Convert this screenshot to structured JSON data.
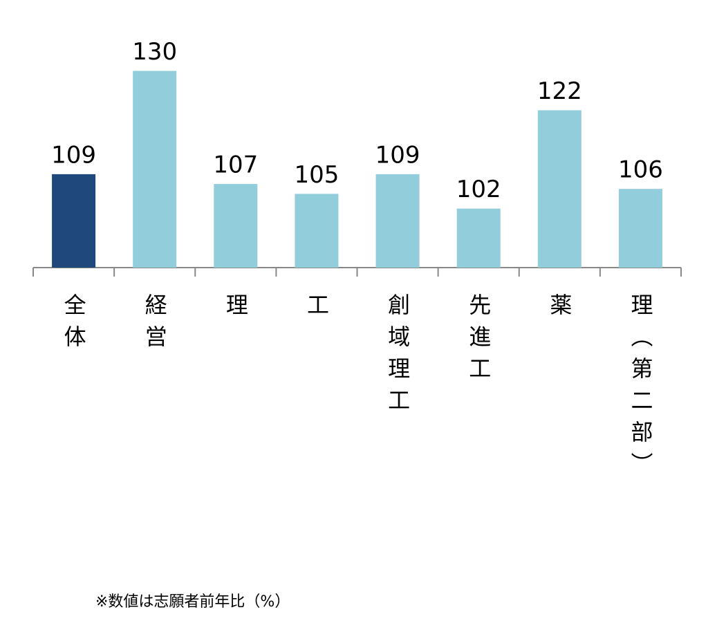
{
  "chart_data": {
    "type": "bar",
    "categories": [
      "全体",
      "経営",
      "理",
      "工",
      "創域理工",
      "先進工",
      "薬",
      "理（第二部）"
    ],
    "values": [
      109,
      130,
      107,
      105,
      109,
      102,
      122,
      106
    ],
    "colors": [
      "#1f497d",
      "#92cddc",
      "#92cddc",
      "#92cddc",
      "#92cddc",
      "#92cddc",
      "#92cddc",
      "#92cddc"
    ],
    "ylim": [
      90,
      135
    ],
    "note": "※数値は志願者前年比（%）"
  }
}
